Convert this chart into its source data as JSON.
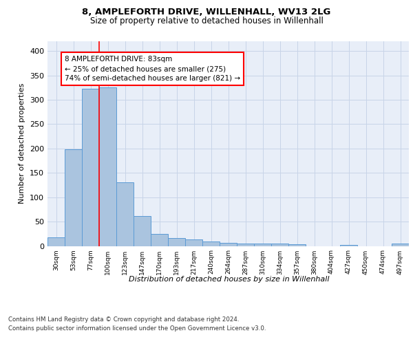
{
  "title1": "8, AMPLEFORTH DRIVE, WILLENHALL, WV13 2LG",
  "title2": "Size of property relative to detached houses in Willenhall",
  "xlabel": "Distribution of detached houses by size in Willenhall",
  "ylabel": "Number of detached properties",
  "footer1": "Contains HM Land Registry data © Crown copyright and database right 2024.",
  "footer2": "Contains public sector information licensed under the Open Government Licence v3.0.",
  "annotation_line1": "8 AMPLEFORTH DRIVE: 83sqm",
  "annotation_line2": "← 25% of detached houses are smaller (275)",
  "annotation_line3": "74% of semi-detached houses are larger (821) →",
  "bin_labels": [
    "30sqm",
    "53sqm",
    "77sqm",
    "100sqm",
    "123sqm",
    "147sqm",
    "170sqm",
    "193sqm",
    "217sqm",
    "240sqm",
    "264sqm",
    "287sqm",
    "310sqm",
    "334sqm",
    "357sqm",
    "380sqm",
    "404sqm",
    "427sqm",
    "450sqm",
    "474sqm",
    "497sqm"
  ],
  "bar_values": [
    18,
    198,
    322,
    325,
    130,
    61,
    25,
    16,
    14,
    9,
    6,
    5,
    5,
    5,
    3,
    0,
    0,
    2,
    0,
    0,
    5
  ],
  "bar_color": "#aac4df",
  "bar_edge_color": "#5b9bd5",
  "grid_color": "#c8d4e8",
  "background_color": "#e8eef8",
  "ylim": [
    0,
    420
  ],
  "yticks": [
    0,
    50,
    100,
    150,
    200,
    250,
    300,
    350,
    400
  ],
  "red_line_x": 2.5
}
